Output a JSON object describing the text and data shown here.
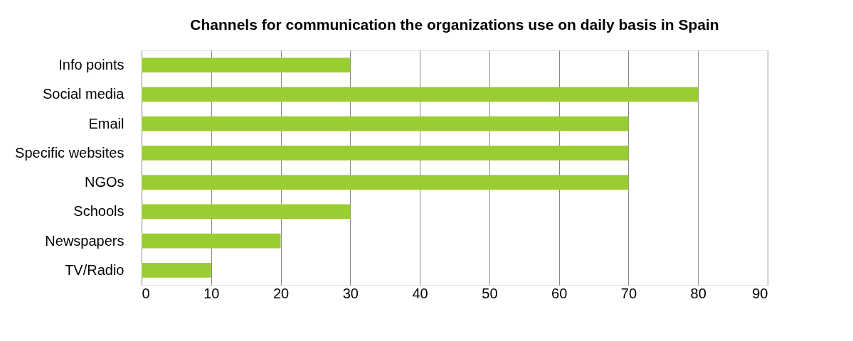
{
  "chart_data": {
    "type": "bar",
    "orientation": "horizontal",
    "title": "Channels for communication the organizations use on daily basis in Spain",
    "categories": [
      "Info points",
      "Social media",
      "Email",
      "Specific websites",
      "NGOs",
      "Schools",
      "Newspapers",
      "TV/Radio"
    ],
    "values": [
      30,
      80,
      70,
      70,
      70,
      30,
      20,
      10
    ],
    "color": "#9acd32",
    "xlim": [
      0,
      90
    ],
    "xticks": [
      0,
      10,
      20,
      30,
      40,
      50,
      60,
      70,
      80,
      90
    ],
    "grid": "x"
  }
}
